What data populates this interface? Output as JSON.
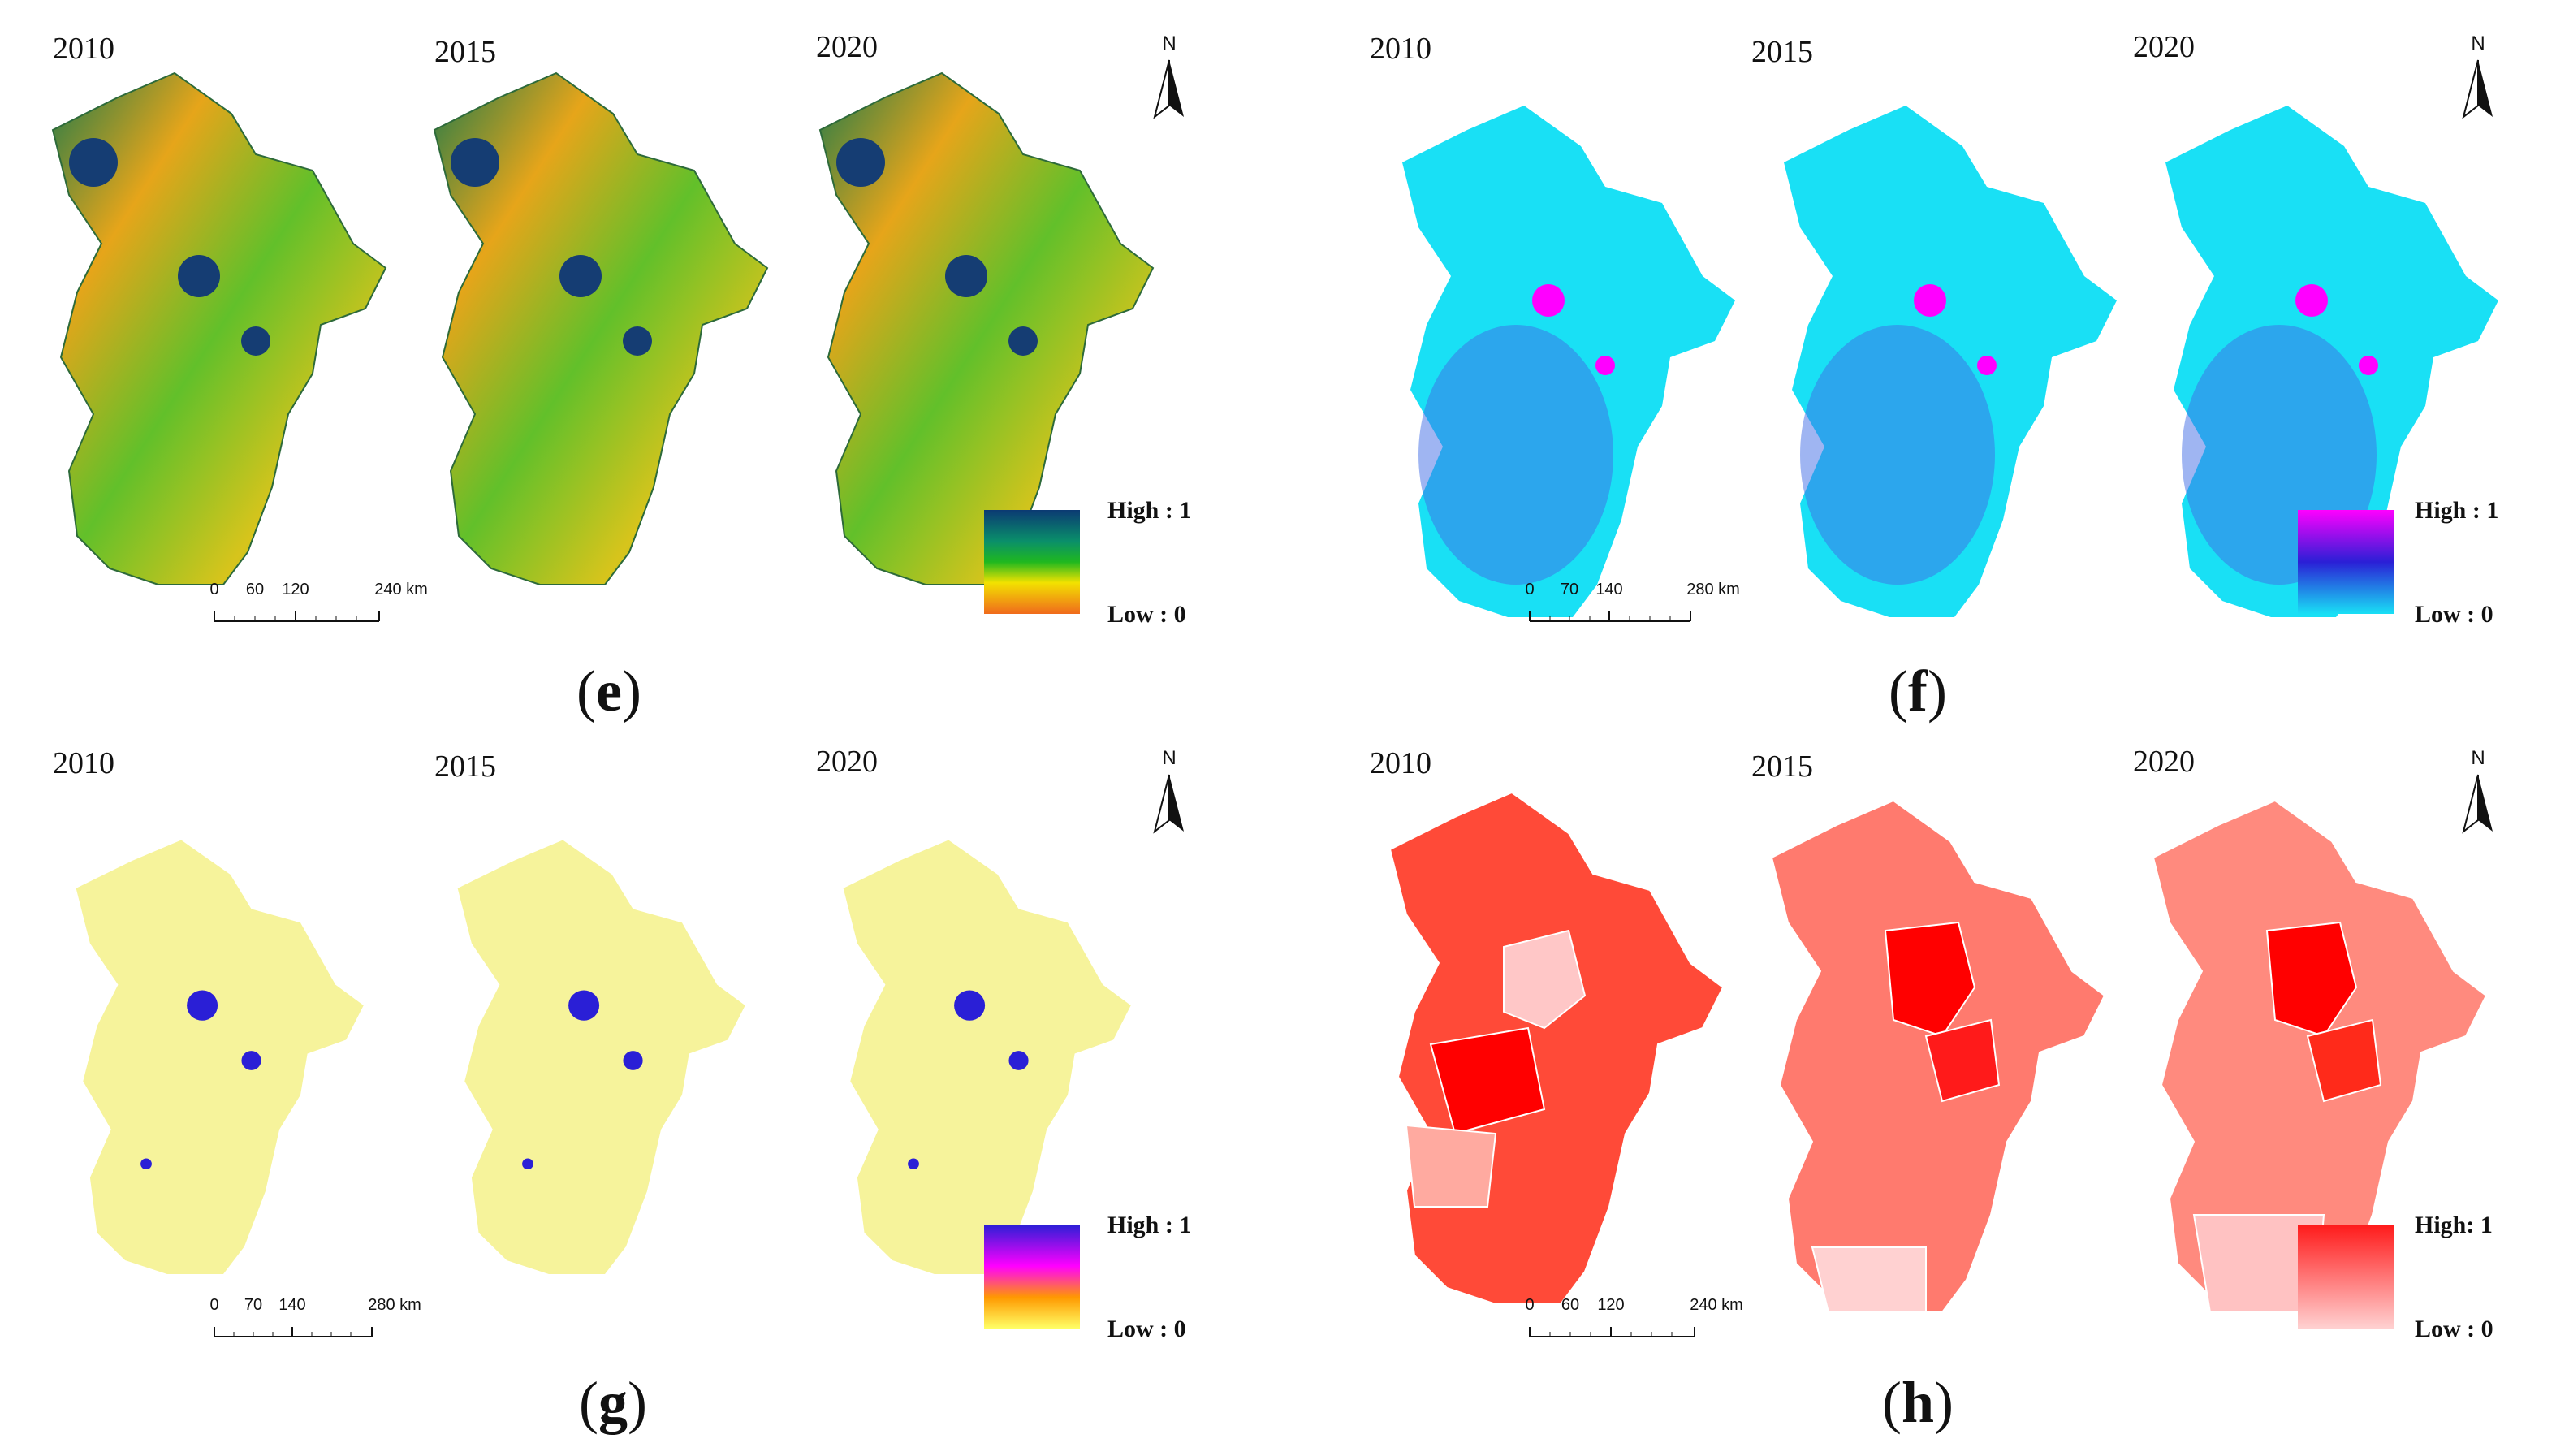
{
  "years": [
    "2010",
    "2015",
    "2020"
  ],
  "north_label": "N",
  "legend": {
    "high": "High : 1",
    "low": "Low : 0",
    "high_h": "High: 1"
  },
  "panels": [
    {
      "letter": "e",
      "scale": [
        "0",
        "60",
        "120",
        "240 km"
      ],
      "colors": {
        "top": "#0b3a73",
        "mid": "#1fb81f",
        "midhigh": "#0a8f6a",
        "lowmid": "#f2e200",
        "low": "#f06a1c"
      }
    },
    {
      "letter": "f",
      "scale": [
        "0",
        "70",
        "140",
        "280 km"
      ],
      "colors": {
        "top": "#ff00ff",
        "mid": "#2a1fd6",
        "low": "#19e0f5"
      }
    },
    {
      "letter": "g",
      "scale": [
        "0",
        "70",
        "140",
        "280 km"
      ],
      "colors": {
        "top": "#2a1fd6",
        "mid": "#ff00ff",
        "low": "#ffff66"
      }
    },
    {
      "letter": "h",
      "scale": [
        "0",
        "60",
        "120",
        "240 km"
      ],
      "colors": {
        "top": "#ff1a1a",
        "low": "#ffd1d1"
      }
    }
  ]
}
